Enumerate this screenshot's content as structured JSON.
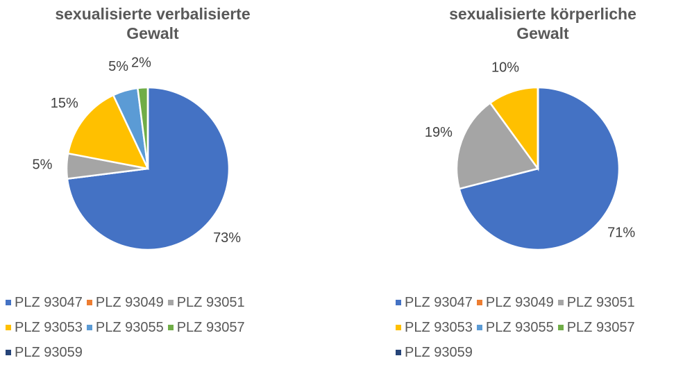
{
  "chart_data": [
    {
      "type": "pie",
      "title": "sexualisierte verbalisierte Gewalt",
      "categories": [
        "PLZ 93047",
        "PLZ 93049",
        "PLZ 93051",
        "PLZ 93053",
        "PLZ 93055",
        "PLZ 93057",
        "PLZ 93059"
      ],
      "values": [
        73,
        0,
        5,
        15,
        5,
        2,
        0
      ],
      "value_labels": [
        "73%",
        null,
        "5%",
        "15%",
        "5%",
        "2%",
        null
      ],
      "colors": [
        "#4472c4",
        "#ed7d31",
        "#a5a5a5",
        "#ffc000",
        "#5b9bd5",
        "#70ad47",
        "#264478"
      ],
      "legend": "bottom"
    },
    {
      "type": "pie",
      "title": "sexualisierte körperliche Gewalt",
      "categories": [
        "PLZ 93047",
        "PLZ 93049",
        "PLZ 93051",
        "PLZ 93053",
        "PLZ 93055",
        "PLZ 93057",
        "PLZ 93059"
      ],
      "values": [
        71,
        0,
        19,
        10,
        0,
        0,
        0
      ],
      "value_labels": [
        "71%",
        null,
        "19%",
        "10%",
        null,
        null,
        null
      ],
      "colors": [
        "#4472c4",
        "#ed7d31",
        "#a5a5a5",
        "#ffc000",
        "#5b9bd5",
        "#70ad47",
        "#264478"
      ],
      "legend": "bottom"
    }
  ]
}
